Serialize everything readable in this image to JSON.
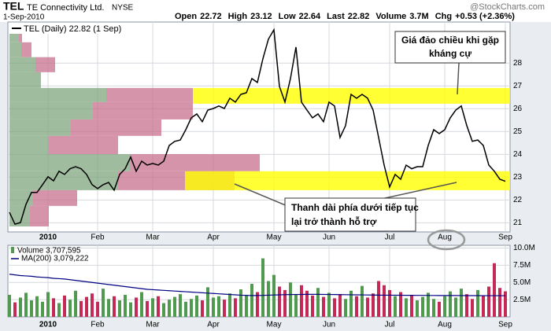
{
  "header": {
    "symbol": "TEL",
    "name": "TE Connectivity Ltd.",
    "exchange": "NYSE",
    "date": "1-Sep-2010",
    "watermark": "@StockCharts.com",
    "stats": [
      {
        "label": "Open",
        "value": "22.72"
      },
      {
        "label": "High",
        "value": "23.12"
      },
      {
        "label": "Low",
        "value": "22.64"
      },
      {
        "label": "Last",
        "value": "22.82"
      },
      {
        "label": "Volume",
        "value": "3.7M"
      },
      {
        "label": "Chg",
        "value": "+0.53 (+2.36%)"
      }
    ]
  },
  "chart_data": [
    {
      "type": "line",
      "categories": [
        null,
        null,
        null,
        null,
        null,
        null,
        null,
        "2010",
        null,
        null,
        null,
        null,
        null,
        null,
        null,
        null,
        "Feb",
        null,
        null,
        null,
        null,
        null,
        null,
        null,
        null,
        null,
        "Mar",
        null,
        null,
        null,
        null,
        null,
        null,
        null,
        null,
        null,
        null,
        "Apr",
        null,
        null,
        null,
        null,
        null,
        null,
        null,
        null,
        null,
        null,
        "May",
        null,
        null,
        null,
        null,
        null,
        null,
        null,
        null,
        null,
        "Jun",
        null,
        null,
        null,
        null,
        null,
        null,
        null,
        null,
        null,
        null,
        "Jul",
        null,
        null,
        null,
        null,
        null,
        null,
        null,
        null,
        null,
        "Aug",
        null,
        null,
        null,
        null,
        null,
        null,
        null,
        null,
        null,
        null,
        "Sep"
      ],
      "series": [
        {
          "name": "TEL (Daily) 22.82 (1 Sep)",
          "color": "#000000",
          "values": [
            21.46,
            20.94,
            21.01,
            21.81,
            22.33,
            22.33,
            22.67,
            23.02,
            22.84,
            23.26,
            23.12,
            23.37,
            23.46,
            23.37,
            23.12,
            22.67,
            22.5,
            22.67,
            22.77,
            22.43,
            23.12,
            23.37,
            23.88,
            23.26,
            23.7,
            23.53,
            23.6,
            23.53,
            23.7,
            24.39,
            24.57,
            24.63,
            25.08,
            25.6,
            25.77,
            25.43,
            25.94,
            26.01,
            26.12,
            26.01,
            26.46,
            26.29,
            26.63,
            26.7,
            27.32,
            27.15,
            28.19,
            29.05,
            29.46,
            26.98,
            26.29,
            27.32,
            28.7,
            26.29,
            25.94,
            25.6,
            25.77,
            25.43,
            26.29,
            26.12,
            24.74,
            25.26,
            26.63,
            26.46,
            26.63,
            26.46,
            25.94,
            24.74,
            23.53,
            22.57,
            23.12,
            22.91,
            23.53,
            23.37,
            23.46,
            23.46,
            24.39,
            25.08,
            24.91,
            25.08,
            25.6,
            25.94,
            26.12,
            25.26,
            24.57,
            24.63,
            24.39,
            23.53,
            23.26,
            22.91,
            22.82
          ]
        }
      ],
      "ylim": [
        20.6,
        29.8
      ],
      "yticks": [
        21,
        22,
        23,
        24,
        25,
        26,
        27,
        28
      ],
      "grid": true,
      "volume_by_price": {
        "price_edges": [
          20.84,
          21.74,
          22.43,
          23.26,
          24.01,
          24.81,
          25.53,
          26.29,
          26.91,
          27.6,
          28.26,
          28.91,
          29.46
        ],
        "up": [
          26,
          30,
          138,
          153,
          50,
          78,
          106,
          123,
          40,
          33,
          15,
          12
        ],
        "down": [
          24,
          56,
          148,
          165,
          88,
          115,
          127,
          110,
          0,
          25,
          13,
          4
        ],
        "xlim": [
          0,
          636
        ],
        "up_color": "#7fa67f",
        "down_color": "#c8708e"
      },
      "highlight_bands": [
        [
          22.43,
          23.26
        ],
        [
          26.22,
          26.91
        ]
      ],
      "band_color": "#ffff00"
    },
    {
      "type": "bar",
      "categories": [
        null,
        null,
        null,
        null,
        null,
        null,
        null,
        "2010",
        null,
        null,
        null,
        null,
        null,
        null,
        null,
        null,
        "Feb",
        null,
        null,
        null,
        null,
        null,
        null,
        null,
        null,
        null,
        "Mar",
        null,
        null,
        null,
        null,
        null,
        null,
        null,
        null,
        null,
        null,
        "Apr",
        null,
        null,
        null,
        null,
        null,
        null,
        null,
        null,
        null,
        null,
        "May",
        null,
        null,
        null,
        null,
        null,
        null,
        null,
        null,
        null,
        "Jun",
        null,
        null,
        null,
        null,
        null,
        null,
        null,
        null,
        null,
        null,
        "Jul",
        null,
        null,
        null,
        null,
        null,
        null,
        null,
        null,
        null,
        "Aug",
        null,
        null,
        null,
        null,
        null,
        null,
        null,
        null,
        null,
        null,
        "Sep"
      ],
      "series": [
        {
          "name": "Volume 3,707,595",
          "up_color": "#4f9a4f",
          "down_color": "#c42a55",
          "values": [
            3200000,
            2100000,
            2800000,
            3500000,
            2400000,
            3000000,
            2200000,
            3600000,
            2700000,
            2000000,
            3100000,
            2500000,
            3800000,
            2300000,
            2900000,
            3400000,
            2200000,
            4100000,
            2600000,
            3000000,
            2400000,
            3200000,
            2100000,
            2800000,
            3600000,
            2300000,
            2700000,
            3000000,
            2000000,
            2500000,
            2900000,
            3300000,
            2200000,
            2600000,
            3100000,
            2400000,
            4300000,
            2800000,
            3000000,
            2500000,
            3400000,
            2700000,
            4000000,
            3200000,
            4800000,
            3600000,
            8500000,
            5200000,
            6100000,
            4400000,
            3900000,
            5000000,
            3300000,
            4600000,
            3800000,
            3100000,
            4200000,
            2900000,
            3500000,
            2700000,
            3300000,
            2600000,
            3800000,
            3000000,
            4500000,
            2800000,
            3400000,
            5200000,
            4600000,
            3900000,
            3000000,
            3600000,
            2700000,
            3200000,
            2400000,
            2900000,
            3500000,
            2600000,
            2200000,
            3000000,
            3700000,
            2800000,
            4100000,
            3300000,
            2600000,
            3900000,
            3100000,
            4400000,
            7800000,
            4200000,
            3707595
          ]
        },
        {
          "name": "MA(200) 3,079,222",
          "color": "#000080",
          "values": [
            6200000,
            6100000,
            6000000,
            5950000,
            5900000,
            5800000,
            5750000,
            5700000,
            5600000,
            5550000,
            5500000,
            5400000,
            5300000,
            5200000,
            5100000,
            5000000,
            4900000,
            4800000,
            4700000,
            4600000,
            4500000,
            4400000,
            4300000,
            4200000,
            4100000,
            4000000,
            3950000,
            3900000,
            3850000,
            3800000,
            3750000,
            3700000,
            3650000,
            3600000,
            3550000,
            3500000,
            3450000,
            3400000,
            3350000,
            3300000,
            3250000,
            3200000,
            3150000,
            3120000,
            3100000,
            3100000,
            3120000,
            3150000,
            3180000,
            3200000,
            3220000,
            3240000,
            3250000,
            3260000,
            3270000,
            3270000,
            3270000,
            3260000,
            3250000,
            3240000,
            3230000,
            3220000,
            3210000,
            3200000,
            3190000,
            3180000,
            3170000,
            3160000,
            3150000,
            3150000,
            3140000,
            3140000,
            3130000,
            3130000,
            3120000,
            3120000,
            3110000,
            3110000,
            3100000,
            3100000,
            3100000,
            3100000,
            3090000,
            3090000,
            3090000,
            3090000,
            3080000,
            3080000,
            3080000,
            3080000,
            3079222
          ]
        }
      ],
      "ylim": [
        0,
        10400000
      ],
      "yticks": [
        {
          "value": 2500000,
          "label": "2.5M"
        },
        {
          "value": 5000000,
          "label": "5.0M"
        },
        {
          "value": 7500000,
          "label": "7.5M"
        },
        {
          "value": 10000000,
          "label": "10.0M"
        }
      ],
      "grid": true
    }
  ],
  "annotations": [
    {
      "lines": [
        "Giá đảo chiều khi gặp",
        "kháng cự"
      ]
    },
    {
      "lines": [
        "Thanh dài phía dưới tiếp tục",
        "lại trở thành hỗ trợ"
      ]
    }
  ]
}
